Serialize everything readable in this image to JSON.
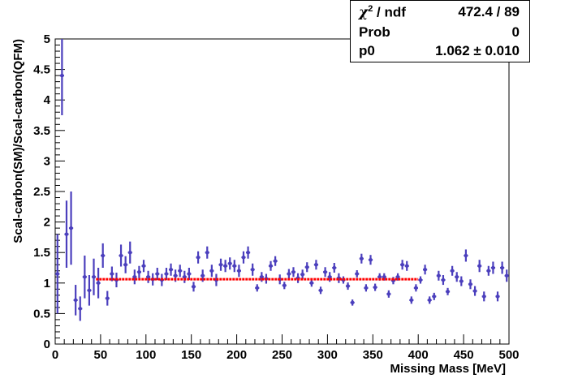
{
  "stats": {
    "chi2_label": "/ ndf",
    "chi2_value": "472.4 / 89",
    "prob_label": "Prob",
    "prob_value": "0",
    "p0_label": "p0",
    "p0_value": "1.062 ± 0.010"
  },
  "chart_data": {
    "type": "scatter",
    "xlabel": "Missing Mass [MeV]",
    "ylabel": "Scal-carbon(SM)/Scal-carbon(QFM)",
    "xlim": [
      0,
      500
    ],
    "ylim": [
      0,
      5
    ],
    "xticks": [
      "0",
      "50",
      "100",
      "150",
      "200",
      "250",
      "300",
      "350",
      "400",
      "450",
      "500"
    ],
    "yticks": [
      "0",
      "0.5",
      "1",
      "1.5",
      "2",
      "2.5",
      "3",
      "3.5",
      "4",
      "4.5",
      "5"
    ],
    "fit": {
      "name": "p0",
      "value": 1.062,
      "error": 0.01,
      "x_range": [
        45,
        400
      ],
      "color": "#ff0000"
    },
    "marker_color": "#4b3fbd",
    "series": [
      {
        "x": [
          2.5,
          7.5,
          12.5,
          17.5,
          22.5,
          27.5,
          32.5,
          37.5,
          42.5,
          47.5,
          52.5,
          57.5,
          62.5,
          67.5,
          72.5,
          77.5,
          82.5,
          87.5,
          92.5,
          97.5,
          102.5,
          107.5,
          112.5,
          117.5,
          122.5,
          127.5,
          132.5,
          137.5,
          142.5,
          147.5,
          152.5,
          157.5,
          162.5,
          167.5,
          172.5,
          177.5,
          182.5,
          187.5,
          192.5,
          197.5,
          202.5,
          207.5,
          212.5,
          217.5,
          222.5,
          227.5,
          232.5,
          237.5,
          242.5,
          247.5,
          252.5,
          257.5,
          262.5,
          267.5,
          272.5,
          277.5,
          282.5,
          287.5,
          292.5,
          297.5,
          302.5,
          307.5,
          312.5,
          317.5,
          322.5,
          327.5,
          332.5,
          337.5,
          342.5,
          347.5,
          352.5,
          357.5,
          362.5,
          367.5,
          372.5,
          377.5,
          382.5,
          387.5,
          392.5,
          397.5,
          402.5,
          407.5,
          412.5,
          417.5,
          422.5,
          427.5,
          432.5,
          437.5,
          442.5,
          447.5,
          452.5,
          457.5,
          462.5,
          467.5,
          472.5,
          477.5,
          482.5,
          487.5,
          492.5,
          497.5
        ],
        "y": [
          1.15,
          4.4,
          1.8,
          1.9,
          0.72,
          0.58,
          1.1,
          0.88,
          1.1,
          1.0,
          1.45,
          0.75,
          1.15,
          1.05,
          1.45,
          1.3,
          1.5,
          1.1,
          1.18,
          1.28,
          1.1,
          1.06,
          1.15,
          1.05,
          1.15,
          1.22,
          1.12,
          1.2,
          1.1,
          1.15,
          0.94,
          1.42,
          1.12,
          1.5,
          1.2,
          1.05,
          1.3,
          1.28,
          1.32,
          1.28,
          1.2,
          1.42,
          1.5,
          1.22,
          0.92,
          1.1,
          1.07,
          1.28,
          1.36,
          1.06,
          0.96,
          1.15,
          1.18,
          1.08,
          1.14,
          1.26,
          1.0,
          1.3,
          0.88,
          1.18,
          1.1,
          1.25,
          1.08,
          1.05,
          0.95,
          0.68,
          1.15,
          1.4,
          0.92,
          1.38,
          0.93,
          1.1,
          1.1,
          0.82,
          1.04,
          1.1,
          1.3,
          1.28,
          0.72,
          0.92,
          1.05,
          1.22,
          0.72,
          0.78,
          1.12,
          1.05,
          0.86,
          1.2,
          1.1,
          1.03,
          1.45,
          0.98,
          0.87,
          1.28,
          0.78,
          1.2,
          1.25,
          0.78,
          1.25,
          1.12
        ],
        "err": [
          0.65,
          0.65,
          0.55,
          0.6,
          0.25,
          0.2,
          0.35,
          0.25,
          0.3,
          0.25,
          0.2,
          0.12,
          0.12,
          0.12,
          0.18,
          0.14,
          0.18,
          0.12,
          0.1,
          0.1,
          0.1,
          0.1,
          0.1,
          0.1,
          0.1,
          0.1,
          0.1,
          0.1,
          0.1,
          0.1,
          0.08,
          0.1,
          0.1,
          0.1,
          0.1,
          0.1,
          0.1,
          0.1,
          0.1,
          0.1,
          0.1,
          0.1,
          0.1,
          0.1,
          0.06,
          0.08,
          0.08,
          0.08,
          0.08,
          0.08,
          0.06,
          0.08,
          0.08,
          0.08,
          0.08,
          0.08,
          0.06,
          0.08,
          0.06,
          0.08,
          0.08,
          0.08,
          0.08,
          0.06,
          0.06,
          0.05,
          0.06,
          0.08,
          0.06,
          0.08,
          0.06,
          0.06,
          0.06,
          0.06,
          0.06,
          0.06,
          0.08,
          0.08,
          0.06,
          0.06,
          0.06,
          0.08,
          0.06,
          0.06,
          0.08,
          0.08,
          0.06,
          0.08,
          0.08,
          0.08,
          0.1,
          0.08,
          0.08,
          0.1,
          0.08,
          0.08,
          0.1,
          0.08,
          0.1,
          0.1
        ]
      }
    ]
  }
}
